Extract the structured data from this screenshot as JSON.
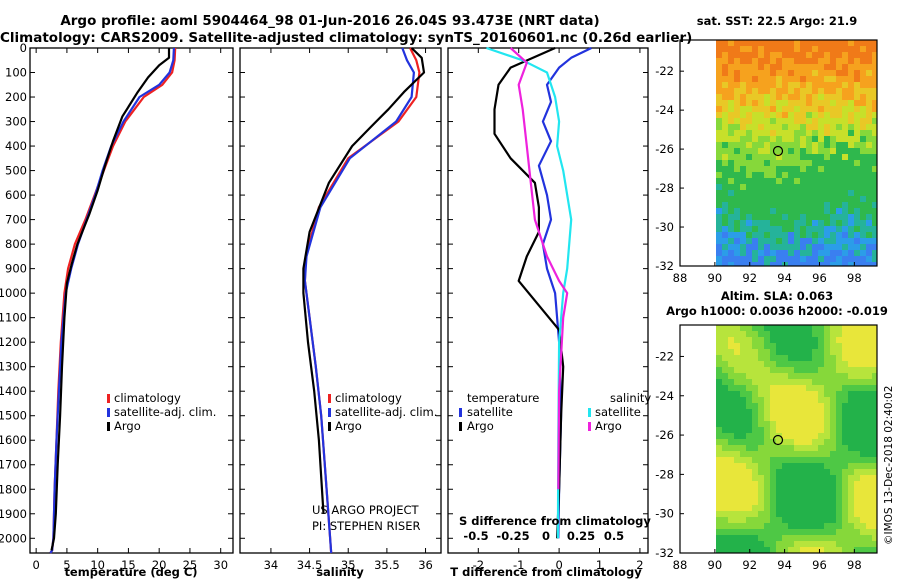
{
  "header": {
    "line1": "Argo profile: aoml 5904464_98 01-Jun-2016 26.04S 93.473E (NRT data)",
    "line2": "Climatology: CARS2009. Satellite-adjusted climatology: synTS_20160601.nc (0.26d earlier)"
  },
  "colors": {
    "climatology": "#ee2222",
    "satellite": "#2233dd",
    "argo": "#000000",
    "sat_salt": "#22e6f0",
    "argo_salt": "#ee22dd"
  },
  "chart_data": [
    {
      "type": "line",
      "panel": "temperature",
      "xlabel": "temperature (deg C)",
      "xlim": [
        -1,
        32
      ],
      "ylim": [
        2060,
        0
      ],
      "x_ticks": [
        0,
        5,
        10,
        15,
        20,
        25,
        30
      ],
      "y_ticks": [
        0,
        100,
        200,
        300,
        400,
        500,
        600,
        700,
        800,
        900,
        1000,
        1100,
        1200,
        1300,
        1400,
        1500,
        1600,
        1700,
        1800,
        1900,
        2000
      ],
      "series": [
        {
          "name": "climatology",
          "color": "#ee2222",
          "x": [
            22.6,
            22.5,
            22.1,
            20.5,
            17.5,
            14.5,
            12.5,
            11.0,
            9.5,
            8.0,
            6.3,
            5.2,
            4.6,
            4.0,
            3.6,
            3.3,
            3.0,
            2.8,
            2.6,
            2.3
          ],
          "depth": [
            0,
            50,
            100,
            150,
            200,
            300,
            400,
            500,
            600,
            700,
            800,
            900,
            1000,
            1200,
            1400,
            1600,
            1800,
            2000,
            2050,
            2060
          ]
        },
        {
          "name": "satellite-adj. clim.",
          "color": "#2233dd",
          "x": [
            22.4,
            22.3,
            21.7,
            20.0,
            16.8,
            14.2,
            12.2,
            10.8,
            9.6,
            8.2,
            6.8,
            5.7,
            4.8,
            4.1,
            3.7,
            3.3,
            3.0,
            2.8,
            2.6,
            2.3
          ],
          "depth": [
            0,
            50,
            100,
            150,
            200,
            300,
            400,
            500,
            600,
            700,
            800,
            900,
            1000,
            1200,
            1400,
            1600,
            1800,
            2000,
            2050,
            2060
          ]
        },
        {
          "name": "Argo",
          "color": "#000000",
          "x": [
            21.6,
            21.6,
            20.0,
            18.2,
            16.5,
            14.0,
            12.5,
            11.2,
            10.0,
            8.6,
            6.7,
            5.8,
            5.0,
            4.6,
            4.2,
            3.9,
            3.5,
            3.2,
            2.9,
            2.5
          ],
          "depth": [
            0,
            40,
            70,
            120,
            180,
            280,
            380,
            480,
            580,
            680,
            800,
            880,
            960,
            1100,
            1300,
            1500,
            1700,
            1900,
            2000,
            2050
          ]
        }
      ],
      "legend": [
        "climatology",
        "satellite-adj. clim.",
        "Argo"
      ]
    },
    {
      "type": "line",
      "panel": "salinity",
      "xlabel": "salinity",
      "xlim": [
        33.6,
        36.2
      ],
      "ylim": [
        2060,
        0
      ],
      "x_ticks": [
        34,
        34.5,
        35,
        35.5,
        36
      ],
      "series": [
        {
          "name": "climatology",
          "color": "#ee2222",
          "x": [
            35.8,
            35.88,
            35.92,
            35.88,
            35.65,
            35.0,
            34.62,
            34.45,
            34.44,
            34.5,
            34.58,
            34.65,
            34.72,
            34.78
          ],
          "depth": [
            0,
            50,
            100,
            200,
            300,
            450,
            650,
            850,
            950,
            1100,
            1300,
            1500,
            1800,
            2060
          ]
        },
        {
          "name": "satellite-adj. clim.",
          "color": "#2233dd",
          "x": [
            35.7,
            35.76,
            35.85,
            35.82,
            35.62,
            35.02,
            34.64,
            34.46,
            34.44,
            34.5,
            34.58,
            34.65,
            34.72,
            34.78
          ],
          "depth": [
            0,
            50,
            100,
            200,
            300,
            450,
            650,
            850,
            950,
            1100,
            1300,
            1500,
            1800,
            2060
          ]
        },
        {
          "name": "Argo",
          "color": "#000000",
          "x": [
            35.82,
            35.95,
            35.98,
            35.72,
            35.52,
            35.3,
            35.05,
            34.75,
            34.5,
            34.42,
            34.42,
            34.48,
            34.56,
            34.62,
            34.68
          ],
          "depth": [
            0,
            40,
            100,
            180,
            250,
            320,
            400,
            550,
            750,
            900,
            1000,
            1200,
            1400,
            1600,
            1900
          ]
        }
      ],
      "legend": [
        "climatology",
        "satellite-adj. clim.",
        "Argo"
      ]
    },
    {
      "type": "line",
      "panel": "difference",
      "xlabel": "T difference from climatology",
      "secondary_xlabel": "S difference from climatology",
      "xlim": [
        -2.75,
        2.2
      ],
      "ylim": [
        2060,
        0
      ],
      "x_ticks": [
        -2,
        -1,
        0,
        1,
        2
      ],
      "secondary_ticks": [
        "-0.5",
        "-0.25",
        "0",
        "0.25",
        "0.5"
      ],
      "legend_groups": {
        "temperature": [
          "satellite",
          "Argo"
        ],
        "salinity": [
          "satellite",
          "Argo"
        ]
      },
      "series": [
        {
          "name": "temperature satellite",
          "color": "#2233dd",
          "x": [
            0.8,
            0.3,
            0.0,
            -0.3,
            -0.2,
            -0.4,
            -0.2,
            -0.5,
            -0.3,
            -0.2,
            -0.4,
            -0.3,
            -0.1,
            0.0,
            0.05,
            0.0,
            -0.02
          ],
          "depth": [
            0,
            40,
            80,
            150,
            220,
            300,
            380,
            480,
            600,
            700,
            800,
            900,
            1000,
            1200,
            1500,
            1800,
            2000
          ]
        },
        {
          "name": "temperature Argo",
          "color": "#000000",
          "x": [
            -0.1,
            -1.2,
            -1.5,
            -1.6,
            -1.6,
            -1.2,
            -0.6,
            -0.5,
            -0.5,
            -0.8,
            -1.0,
            -0.5,
            0.0,
            0.1,
            0.05,
            0.0,
            -0.05
          ],
          "depth": [
            0,
            80,
            150,
            250,
            350,
            450,
            550,
            650,
            750,
            850,
            950,
            1050,
            1150,
            1300,
            1500,
            1800,
            2000
          ]
        },
        {
          "name": "salinity satellite",
          "color": "#22e6f0",
          "x": [
            -1.8,
            -0.9,
            -0.3,
            -0.1,
            0.0,
            -0.05,
            0.1,
            0.3,
            0.2,
            0.1,
            0.0,
            -0.02,
            -0.03
          ],
          "depth": [
            0,
            50,
            100,
            200,
            300,
            400,
            500,
            700,
            900,
            1000,
            1200,
            1600,
            2000
          ]
        },
        {
          "name": "salinity Argo",
          "color": "#ee22dd",
          "x": [
            -1.2,
            -0.8,
            -1.0,
            -0.9,
            -0.8,
            -0.7,
            -0.6,
            -0.3,
            0.0,
            0.2,
            0.1,
            0.0,
            -0.02
          ],
          "depth": [
            0,
            60,
            150,
            250,
            400,
            550,
            700,
            850,
            950,
            1000,
            1100,
            1400,
            1800
          ]
        }
      ]
    },
    {
      "type": "heatmap",
      "panel": "SST map",
      "title": "sat. SST: 22.5 Argo: 21.9",
      "x_ticks": [
        88,
        90,
        92,
        94,
        96,
        98
      ],
      "y_ticks": [
        -22,
        -24,
        -26,
        -28,
        -30,
        -32
      ],
      "xlim": [
        88,
        99.3
      ],
      "ylim": [
        -32,
        -20.4
      ],
      "profile_location": [
        93.473,
        -26.04
      ]
    },
    {
      "type": "heatmap",
      "panel": "SLA map",
      "title": "Altim. SLA: 0.063",
      "subtitle": "Argo h1000: 0.0036 h2000: -0.019",
      "x_ticks": [
        88,
        90,
        92,
        94,
        96,
        98
      ],
      "y_ticks": [
        -22,
        -24,
        -26,
        -28,
        -30,
        -32
      ],
      "xlim": [
        88,
        99.3
      ],
      "ylim": [
        -32,
        -20.4
      ],
      "profile_location": [
        93.473,
        -26.04
      ]
    }
  ],
  "credits": {
    "line1": "US ARGO PROJECT",
    "line2": "PI: STEPHEN RISER"
  },
  "footer_stamp": "©IMOS 13-Dec-2018 02:40:02"
}
